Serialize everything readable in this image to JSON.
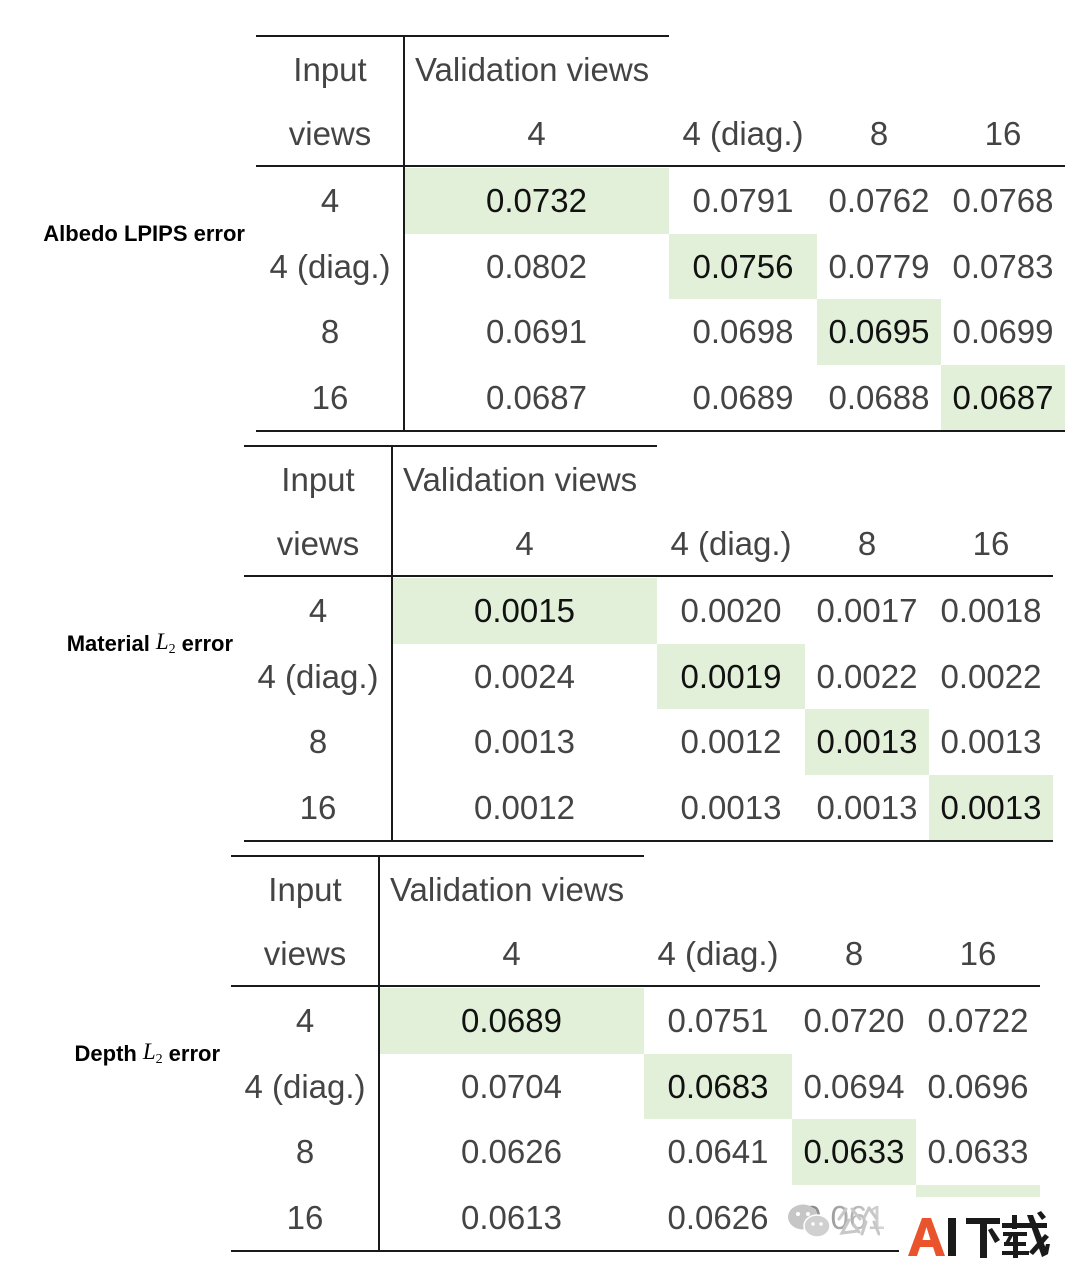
{
  "tables": [
    {
      "label": {
        "text": "Albedo LPIPS error"
      },
      "header": {
        "input_top": "Input",
        "input_bottom": "views",
        "validation": "Validation views",
        "columns": [
          "4",
          "4 (diag.)",
          "8",
          "16"
        ]
      },
      "rows": [
        {
          "input": "4",
          "values": [
            "0.0732",
            "0.0791",
            "0.0762",
            "0.0768"
          ],
          "highlight": 0
        },
        {
          "input": "4 (diag.)",
          "values": [
            "0.0802",
            "0.0756",
            "0.0779",
            "0.0783"
          ],
          "highlight": 1
        },
        {
          "input": "8",
          "values": [
            "0.0691",
            "0.0698",
            "0.0695",
            "0.0699"
          ],
          "highlight": 2
        },
        {
          "input": "16",
          "values": [
            "0.0687",
            "0.0689",
            "0.0688",
            "0.0687"
          ],
          "highlight": 3
        }
      ]
    },
    {
      "label": {
        "text": "Material",
        "math": "L",
        "sub": "2",
        "suffix": "error"
      },
      "header": {
        "input_top": "Input",
        "input_bottom": "views",
        "validation": "Validation views",
        "columns": [
          "4",
          "4 (diag.)",
          "8",
          "16"
        ]
      },
      "rows": [
        {
          "input": "4",
          "values": [
            "0.0015",
            "0.0020",
            "0.0017",
            "0.0018"
          ],
          "highlight": 0
        },
        {
          "input": "4 (diag.)",
          "values": [
            "0.0024",
            "0.0019",
            "0.0022",
            "0.0022"
          ],
          "highlight": 1
        },
        {
          "input": "8",
          "values": [
            "0.0013",
            "0.0012",
            "0.0013",
            "0.0013"
          ],
          "highlight": 2
        },
        {
          "input": "16",
          "values": [
            "0.0012",
            "0.0013",
            "0.0013",
            "0.0013"
          ],
          "highlight": 3
        }
      ]
    },
    {
      "label": {
        "text": "Depth",
        "math": "L",
        "sub": "2",
        "suffix": "error"
      },
      "header": {
        "input_top": "Input",
        "input_bottom": "views",
        "validation": "Validation views",
        "columns": [
          "4",
          "4 (diag.)",
          "8",
          "16"
        ]
      },
      "rows": [
        {
          "input": "4",
          "values": [
            "0.0689",
            "0.0751",
            "0.0720",
            "0.0722"
          ],
          "highlight": 0
        },
        {
          "input": "4 (diag.)",
          "values": [
            "0.0704",
            "0.0683",
            "0.0694",
            "0.0696"
          ],
          "highlight": 1
        },
        {
          "input": "8",
          "values": [
            "0.0626",
            "0.0641",
            "0.0633",
            "0.0633"
          ],
          "highlight": 2
        },
        {
          "input": "16",
          "values": [
            "0.0613",
            "0.0626",
            "0.061",
            null
          ],
          "highlight": 3
        }
      ]
    }
  ],
  "colors": {
    "highlight": "#e2f0d9",
    "text": "#444444",
    "highlight_text": "#111111",
    "rule": "#1a1a1a"
  },
  "watermark": {
    "faint_text": "公众",
    "faint_icon": "wechat-icon",
    "logo": "AI下载",
    "logo_accent": "#e9542d"
  }
}
